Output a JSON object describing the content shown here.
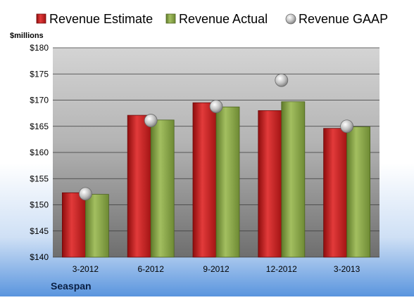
{
  "chart_data": {
    "type": "bar",
    "title": "",
    "unit_label": "$millions",
    "company": "Seaspan",
    "categories": [
      "3-2012",
      "6-2012",
      "9-2012",
      "12-2012",
      "3-2013"
    ],
    "series": [
      {
        "name": "Revenue Estimate",
        "kind": "bar",
        "color": "#cc1f1f",
        "values": [
          152.3,
          167.1,
          169.5,
          168.0,
          164.6
        ]
      },
      {
        "name": "Revenue Actual",
        "kind": "bar",
        "color": "#8faa4c",
        "values": [
          152.0,
          166.2,
          168.7,
          169.7,
          164.9
        ]
      },
      {
        "name": "Revenue GAAP",
        "kind": "marker",
        "color": "#b8b8b8",
        "values": [
          152.1,
          166.1,
          168.8,
          173.8,
          165.0
        ]
      }
    ],
    "ylim": [
      140,
      180
    ],
    "yticks": [
      140,
      145,
      150,
      155,
      160,
      165,
      170,
      175,
      180
    ],
    "ytick_labels": [
      "$140",
      "$145",
      "$150",
      "$155",
      "$160",
      "$165",
      "$170",
      "$175",
      "$180"
    ],
    "grid": true,
    "legend": "top"
  }
}
